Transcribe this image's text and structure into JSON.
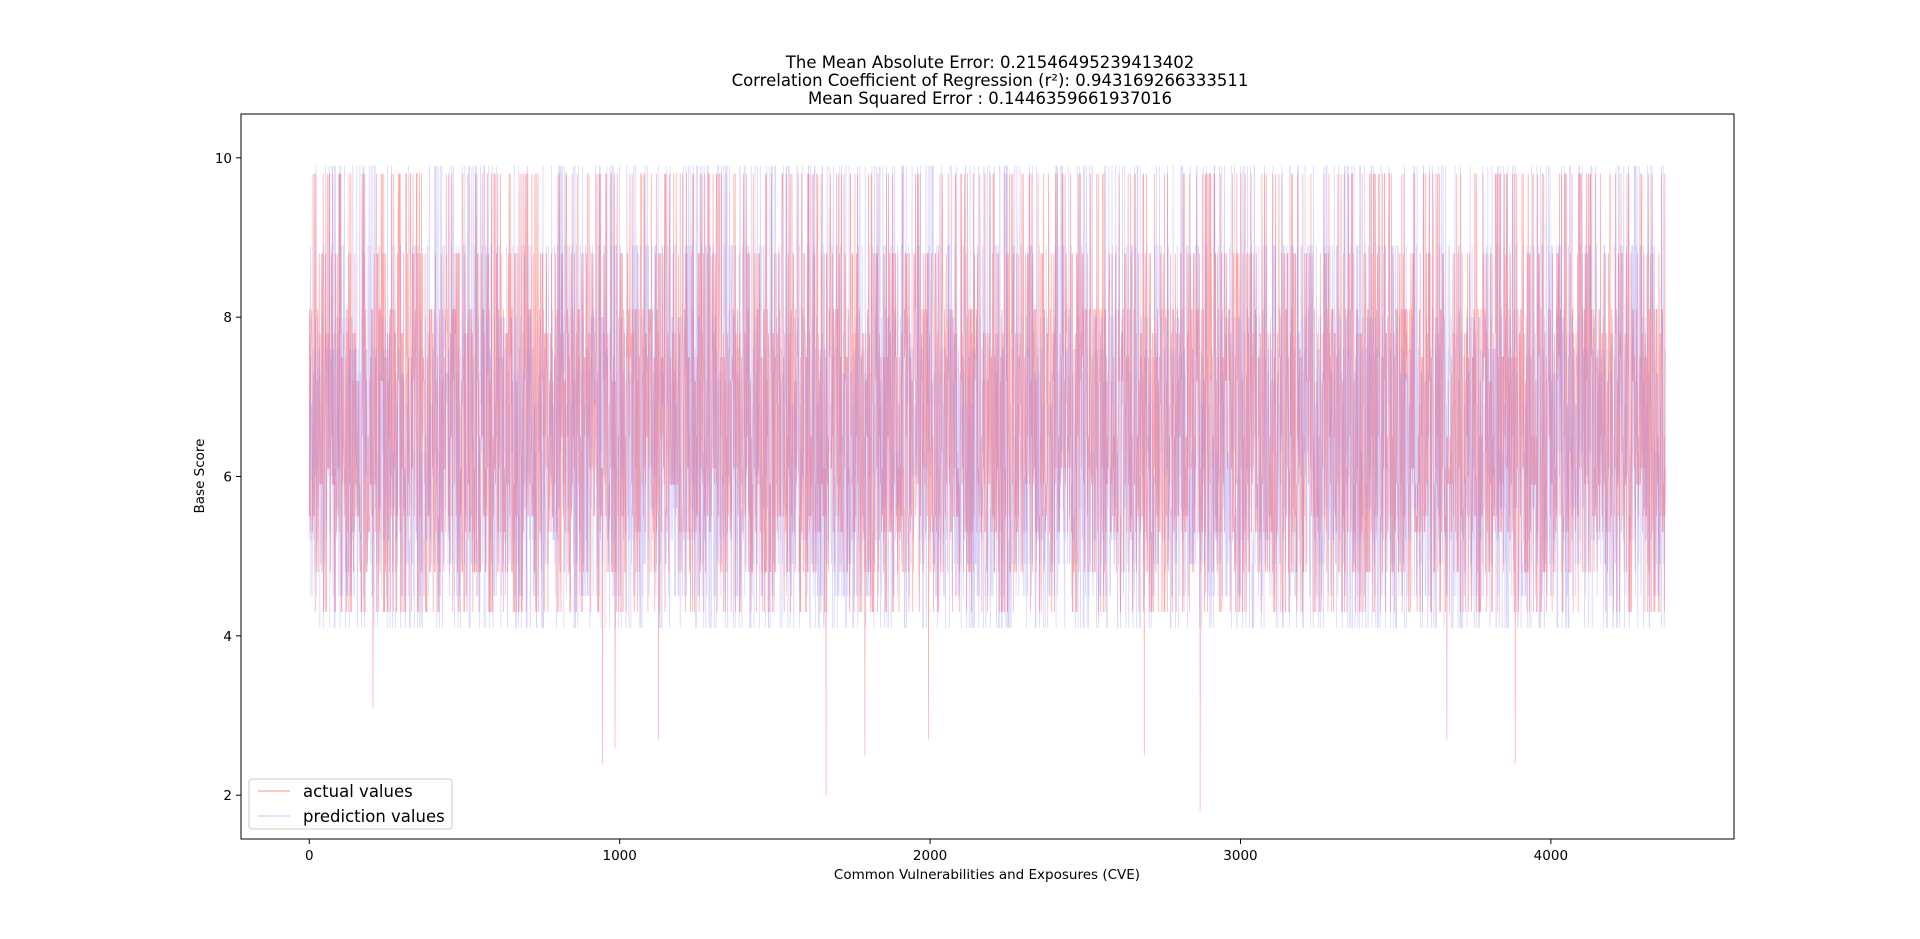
{
  "chart_data": {
    "type": "line",
    "title_lines": [
      "The Mean Absolute Error: 0.21546495239413402",
      "Correlation Coefficient of Regression (r²): 0.943169266333511",
      "Mean Squared Error : 0.1446359661937016"
    ],
    "xlabel": "Common Vulnerabilities and Exposures (CVE)",
    "ylabel": "Base Score",
    "xlim": [
      -220,
      4590
    ],
    "ylim": [
      1.45,
      10.55
    ],
    "x_ticks": [
      0,
      1000,
      2000,
      3000,
      4000
    ],
    "y_ticks": [
      2,
      4,
      6,
      8,
      10
    ],
    "x_tick_labels": [
      "0",
      "1000",
      "2000",
      "3000",
      "4000"
    ],
    "y_tick_labels": [
      "2",
      "4",
      "6",
      "8",
      "10"
    ],
    "grid": false,
    "legend": {
      "placement": "lower-left",
      "entries": [
        {
          "name": "actual values",
          "color": "#ff0000",
          "alpha": 0.4
        },
        {
          "name": "prediction values",
          "color": "#8a7cf0",
          "alpha": 0.4
        }
      ]
    },
    "series": [
      {
        "name": "actual values",
        "color": "#ff0000",
        "n_points": 4370,
        "x_range": [
          0,
          4369
        ],
        "observed_range": [
          1.8,
          9.8
        ],
        "common_levels": [
          9.8,
          8.8,
          8.1,
          7.8,
          7.5,
          7.2,
          6.5,
          6.1,
          5.9,
          5.5,
          5.3,
          4.8,
          4.3
        ],
        "notable_minima": [
          [
            205,
            3.1
          ],
          [
            945,
            2.4
          ],
          [
            985,
            2.6
          ],
          [
            1125,
            2.7
          ],
          [
            1665,
            2.0
          ],
          [
            1790,
            2.5
          ],
          [
            1995,
            2.7
          ],
          [
            2690,
            2.5
          ],
          [
            2870,
            1.8
          ],
          [
            3665,
            2.7
          ],
          [
            3885,
            2.4
          ]
        ]
      },
      {
        "name": "prediction values",
        "color": "#8a7cf0",
        "n_points": 4370,
        "x_range": [
          0,
          4369
        ],
        "observed_range": [
          3.1,
          10.1
        ],
        "common_levels": [
          9.9,
          8.9,
          8.0,
          7.6,
          7.3,
          6.9,
          6.3,
          6.0,
          5.6,
          5.2,
          4.9,
          4.5,
          4.1
        ]
      }
    ]
  }
}
